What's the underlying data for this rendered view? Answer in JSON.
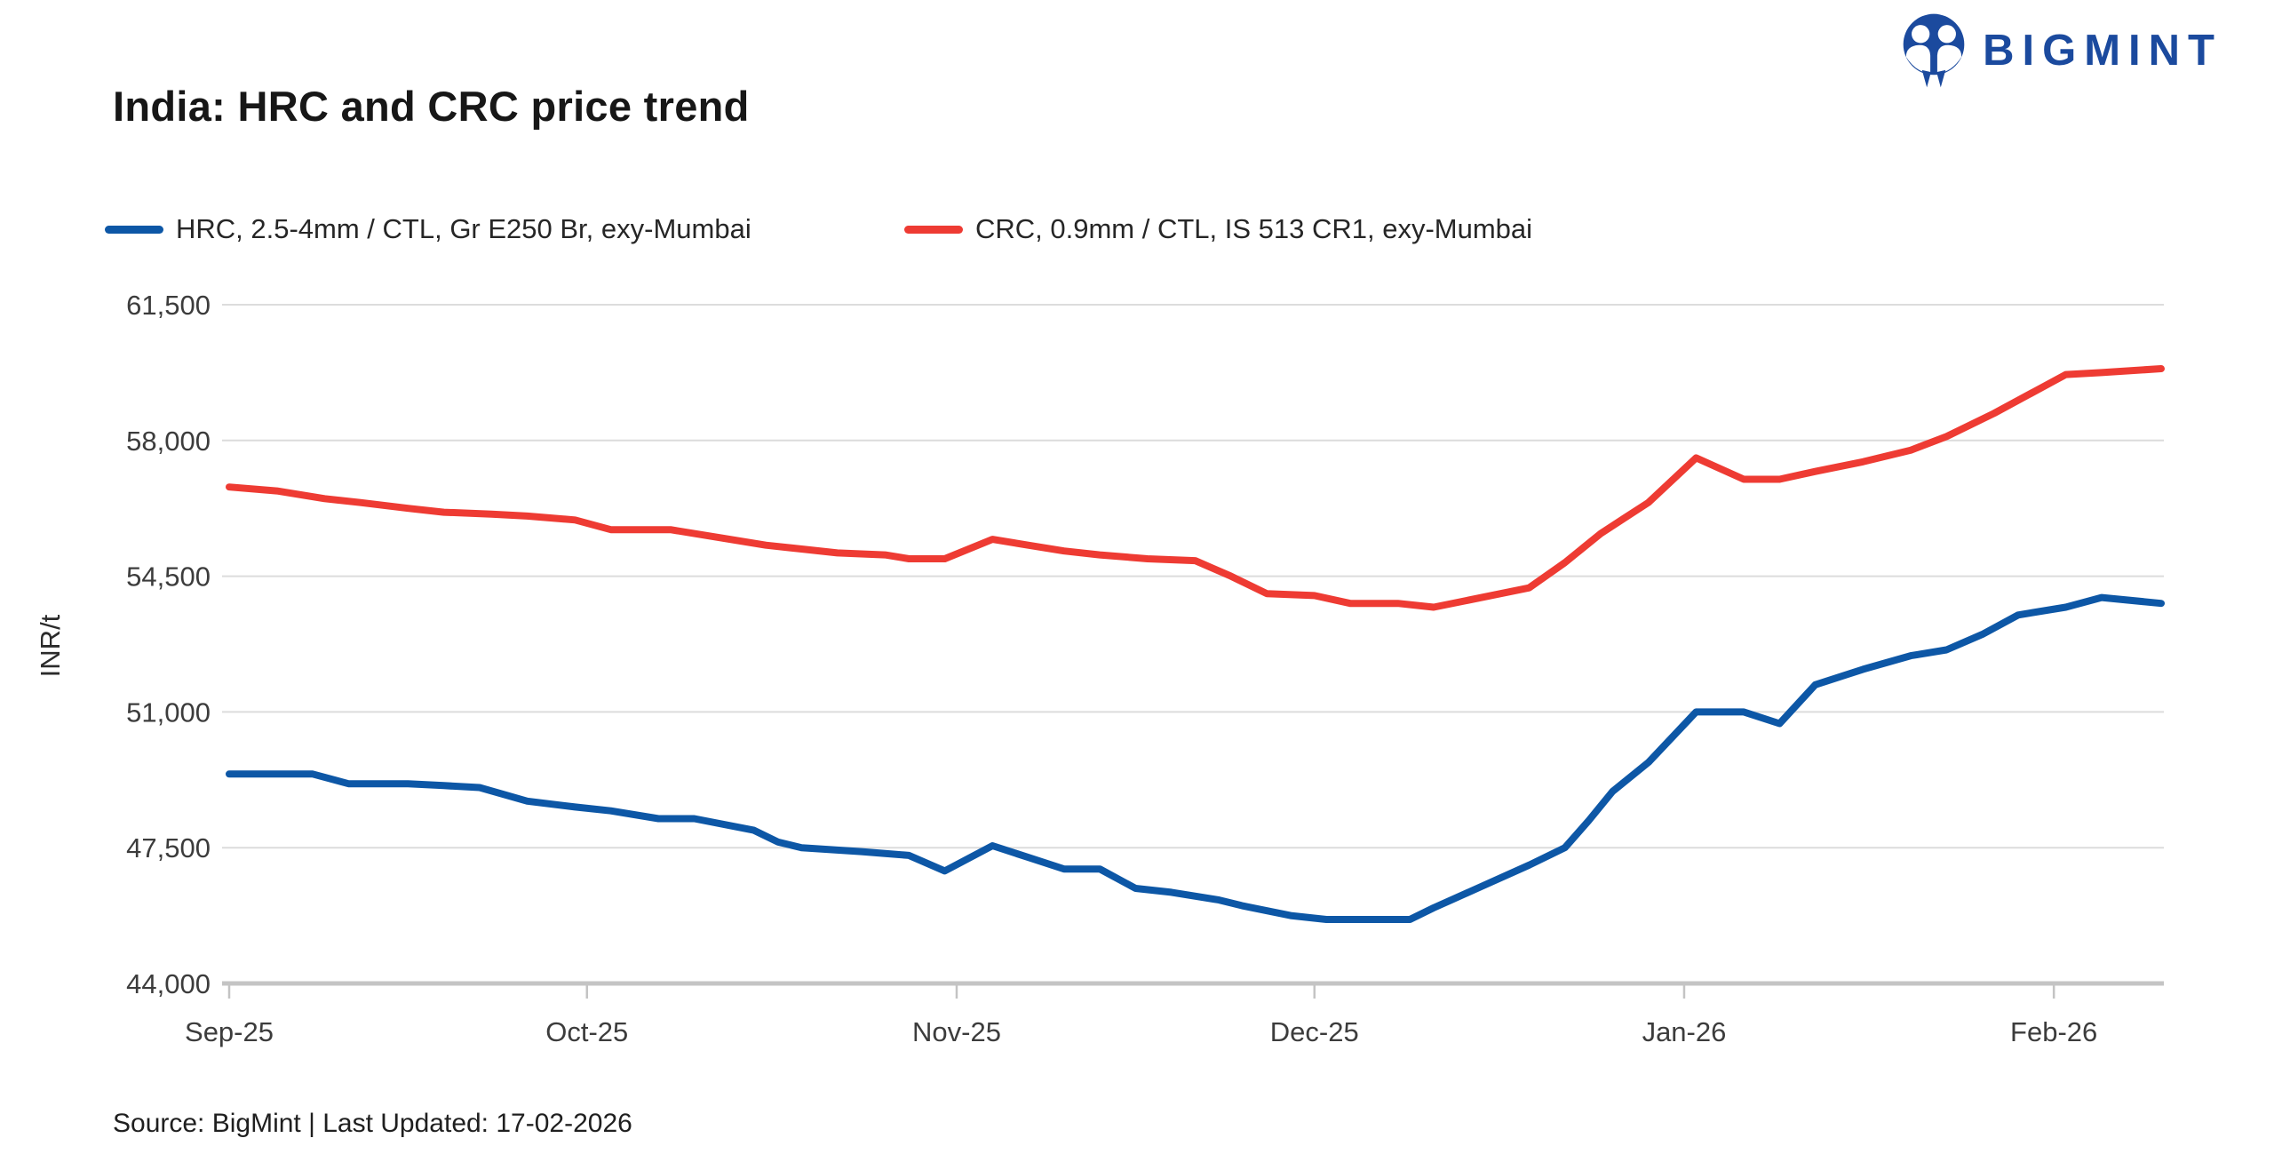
{
  "header": {
    "title": "India: HRC and CRC price trend",
    "brand": {
      "name": "BIGMINT"
    }
  },
  "footer": {
    "source_text": "Source: BigMint | Last Updated: 17-02-2026"
  },
  "colors": {
    "hrc_blue": "#0d57a6",
    "crc_red": "#ee3b33",
    "brand_blue": "#1b4a9e",
    "gridline": "#dcdcdc",
    "axis": "#c4c4c4"
  },
  "chart_data": {
    "type": "line",
    "title": "India: HRC and CRC price trend",
    "xlabel": "",
    "ylabel": "INR/t",
    "ylim": [
      44000,
      61500
    ],
    "grid": "horizontal",
    "legend_position": "top",
    "x_domain": [
      "2025-09-01",
      "2026-02-10"
    ],
    "y_ticks": [
      {
        "value": 44000,
        "label": "44,000"
      },
      {
        "value": 47500,
        "label": "47,500"
      },
      {
        "value": 51000,
        "label": "51,000"
      },
      {
        "value": 54500,
        "label": "54,500"
      },
      {
        "value": 58000,
        "label": "58,000"
      },
      {
        "value": 61500,
        "label": "61,500"
      }
    ],
    "x_ticks": [
      {
        "date": "2025-09-01",
        "label": "Sep-25"
      },
      {
        "date": "2025-10-01",
        "label": "Oct-25"
      },
      {
        "date": "2025-11-01",
        "label": "Nov-25"
      },
      {
        "date": "2025-12-01",
        "label": "Dec-25"
      },
      {
        "date": "2026-01-01",
        "label": "Jan-26"
      },
      {
        "date": "2026-02-01",
        "label": "Feb-26"
      }
    ],
    "series": [
      {
        "name": "HRC",
        "label": "HRC, 2.5-4mm / CTL, Gr E250 Br, exy-Mumbai",
        "color": "#0d57a6",
        "points": [
          [
            "2025-09-01",
            49400
          ],
          [
            "2025-09-08",
            49400
          ],
          [
            "2025-09-11",
            49150
          ],
          [
            "2025-09-16",
            49150
          ],
          [
            "2025-09-19",
            49100
          ],
          [
            "2025-09-22",
            49050
          ],
          [
            "2025-09-26",
            48700
          ],
          [
            "2025-09-30",
            48550
          ],
          [
            "2025-10-03",
            48450
          ],
          [
            "2025-10-07",
            48250
          ],
          [
            "2025-10-10",
            48250
          ],
          [
            "2025-10-15",
            47950
          ],
          [
            "2025-10-17",
            47650
          ],
          [
            "2025-10-19",
            47500
          ],
          [
            "2025-10-24",
            47400
          ],
          [
            "2025-10-26",
            47350
          ],
          [
            "2025-10-28",
            47300
          ],
          [
            "2025-10-31",
            46900
          ],
          [
            "2025-11-04",
            47550
          ],
          [
            "2025-11-07",
            47250
          ],
          [
            "2025-11-10",
            46950
          ],
          [
            "2025-11-13",
            46950
          ],
          [
            "2025-11-16",
            46450
          ],
          [
            "2025-11-19",
            46350
          ],
          [
            "2025-11-23",
            46150
          ],
          [
            "2025-11-25",
            46000
          ],
          [
            "2025-11-29",
            45750
          ],
          [
            "2025-12-02",
            45650
          ],
          [
            "2025-12-09",
            45650
          ],
          [
            "2025-12-11",
            45950
          ],
          [
            "2025-12-15",
            46500
          ],
          [
            "2025-12-19",
            47050
          ],
          [
            "2025-12-22",
            47500
          ],
          [
            "2025-12-24",
            48200
          ],
          [
            "2025-12-26",
            48950
          ],
          [
            "2025-12-29",
            49700
          ],
          [
            "2026-01-02",
            51000
          ],
          [
            "2026-01-06",
            51000
          ],
          [
            "2026-01-09",
            50700
          ],
          [
            "2026-01-12",
            51700
          ],
          [
            "2026-01-16",
            52100
          ],
          [
            "2026-01-20",
            52450
          ],
          [
            "2026-01-23",
            52600
          ],
          [
            "2026-01-26",
            53000
          ],
          [
            "2026-01-29",
            53500
          ],
          [
            "2026-02-02",
            53700
          ],
          [
            "2026-02-05",
            53950
          ],
          [
            "2026-02-10",
            53800
          ]
        ]
      },
      {
        "name": "CRC",
        "label": "CRC, 0.9mm / CTL, IS 513 CR1, exy-Mumbai",
        "color": "#ee3b33",
        "points": [
          [
            "2025-09-01",
            56800
          ],
          [
            "2025-09-05",
            56700
          ],
          [
            "2025-09-09",
            56500
          ],
          [
            "2025-09-12",
            56400
          ],
          [
            "2025-09-16",
            56250
          ],
          [
            "2025-09-19",
            56150
          ],
          [
            "2025-09-23",
            56100
          ],
          [
            "2025-09-26",
            56050
          ],
          [
            "2025-09-30",
            55950
          ],
          [
            "2025-10-03",
            55700
          ],
          [
            "2025-10-08",
            55700
          ],
          [
            "2025-10-12",
            55500
          ],
          [
            "2025-10-16",
            55300
          ],
          [
            "2025-10-19",
            55200
          ],
          [
            "2025-10-22",
            55100
          ],
          [
            "2025-10-26",
            55050
          ],
          [
            "2025-10-28",
            54950
          ],
          [
            "2025-10-31",
            54950
          ],
          [
            "2025-11-04",
            55450
          ],
          [
            "2025-11-07",
            55300
          ],
          [
            "2025-11-10",
            55150
          ],
          [
            "2025-11-13",
            55050
          ],
          [
            "2025-11-17",
            54950
          ],
          [
            "2025-11-21",
            54900
          ],
          [
            "2025-11-24",
            54500
          ],
          [
            "2025-11-27",
            54050
          ],
          [
            "2025-12-01",
            54000
          ],
          [
            "2025-12-04",
            53800
          ],
          [
            "2025-12-08",
            53800
          ],
          [
            "2025-12-11",
            53700
          ],
          [
            "2025-12-19",
            54200
          ],
          [
            "2025-12-22",
            54850
          ],
          [
            "2025-12-25",
            55600
          ],
          [
            "2025-12-27",
            56000
          ],
          [
            "2025-12-29",
            56400
          ],
          [
            "2026-01-02",
            57550
          ],
          [
            "2026-01-06",
            57000
          ],
          [
            "2026-01-09",
            57000
          ],
          [
            "2026-01-12",
            57200
          ],
          [
            "2026-01-16",
            57450
          ],
          [
            "2026-01-20",
            57750
          ],
          [
            "2026-01-23",
            58100
          ],
          [
            "2026-01-27",
            58700
          ],
          [
            "2026-02-02",
            59700
          ],
          [
            "2026-02-05",
            59750
          ],
          [
            "2026-02-10",
            59850
          ]
        ]
      }
    ]
  }
}
